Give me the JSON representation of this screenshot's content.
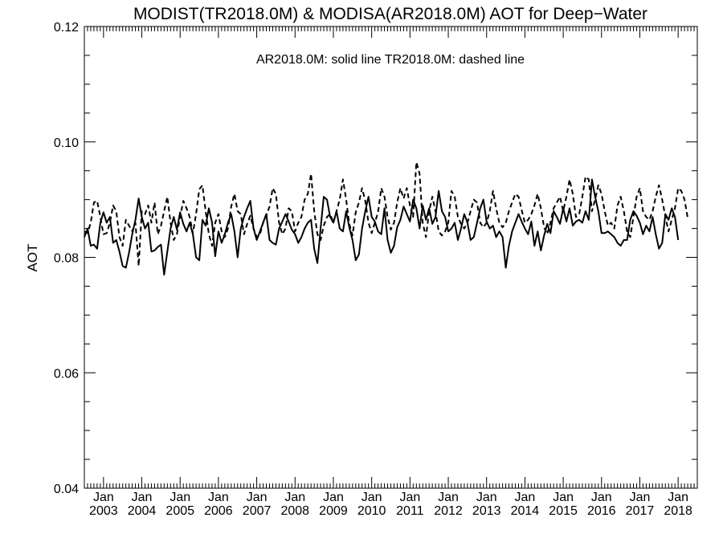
{
  "chart_data": {
    "type": "line",
    "title": "MODIST(TR2018.0M) & MODISA(AR2018.0M)  AOT for Deep−Water",
    "ylabel": "AOT",
    "xlabel": "",
    "legend_note": "AR2018.0M: solid line   TR2018.0M: dashed line",
    "ylim": [
      0.04,
      0.12
    ],
    "yticks": [
      "0.04",
      "0.06",
      "0.08",
      "0.10",
      "0.12"
    ],
    "xlim": [
      "2002-07",
      "2018-07"
    ],
    "xticks": [
      {
        "month": "Jan",
        "year": "2003",
        "date": "2003-01"
      },
      {
        "month": "Jan",
        "year": "2004",
        "date": "2004-01"
      },
      {
        "month": "Jan",
        "year": "2005",
        "date": "2005-01"
      },
      {
        "month": "Jan",
        "year": "2006",
        "date": "2006-01"
      },
      {
        "month": "Jan",
        "year": "2007",
        "date": "2007-01"
      },
      {
        "month": "Jan",
        "year": "2008",
        "date": "2008-01"
      },
      {
        "month": "Jan",
        "year": "2009",
        "date": "2009-01"
      },
      {
        "month": "Jan",
        "year": "2010",
        "date": "2010-01"
      },
      {
        "month": "Jan",
        "year": "2011",
        "date": "2011-01"
      },
      {
        "month": "Jan",
        "year": "2012",
        "date": "2012-01"
      },
      {
        "month": "Jan",
        "year": "2013",
        "date": "2013-01"
      },
      {
        "month": "Jan",
        "year": "2014",
        "date": "2014-01"
      },
      {
        "month": "Jan",
        "year": "2015",
        "date": "2015-01"
      },
      {
        "month": "Jan",
        "year": "2016",
        "date": "2016-01"
      },
      {
        "month": "Jan",
        "year": "2017",
        "date": "2017-01"
      },
      {
        "month": "Jan",
        "year": "2018",
        "date": "2018-01"
      }
    ],
    "grid": false,
    "series": [
      {
        "name": "AR2018.0M",
        "style": "solid",
        "color": "#000000",
        "start": "2002-07",
        "values": [
          0.0835,
          0.085,
          0.082,
          0.0822,
          0.0815,
          0.086,
          0.0878,
          0.086,
          0.087,
          0.0825,
          0.083,
          0.081,
          0.0785,
          0.0782,
          0.0808,
          0.084,
          0.0865,
          0.0902,
          0.087,
          0.085,
          0.086,
          0.081,
          0.0812,
          0.0818,
          0.0822,
          0.077,
          0.081,
          0.085,
          0.087,
          0.0848,
          0.0878,
          0.0858,
          0.0845,
          0.086,
          0.084,
          0.08,
          0.0795,
          0.0865,
          0.0855,
          0.0885,
          0.086,
          0.0802,
          0.0845,
          0.0825,
          0.084,
          0.086,
          0.0875,
          0.0845,
          0.08,
          0.085,
          0.087,
          0.0885,
          0.0898,
          0.085,
          0.083,
          0.0845,
          0.086,
          0.0875,
          0.083,
          0.0825,
          0.0822,
          0.085,
          0.0862,
          0.0875,
          0.0862,
          0.0848,
          0.084,
          0.0825,
          0.0835,
          0.085,
          0.086,
          0.0865,
          0.0815,
          0.079,
          0.085,
          0.0905,
          0.09,
          0.087,
          0.086,
          0.088,
          0.085,
          0.0845,
          0.088,
          0.0852,
          0.083,
          0.0795,
          0.0805,
          0.085,
          0.088,
          0.0905,
          0.087,
          0.0862,
          0.0845,
          0.084,
          0.0885,
          0.083,
          0.0808,
          0.082,
          0.0852,
          0.0865,
          0.0888,
          0.0875,
          0.0862,
          0.09,
          0.0885,
          0.085,
          0.089,
          0.0865,
          0.0885,
          0.0858,
          0.087,
          0.0915,
          0.088,
          0.087,
          0.0845,
          0.085,
          0.086,
          0.083,
          0.085,
          0.0875,
          0.086,
          0.083,
          0.0835,
          0.086,
          0.0885,
          0.09,
          0.0862,
          0.085,
          0.0855,
          0.0835,
          0.0845,
          0.0835,
          0.0782,
          0.082,
          0.0845,
          0.086,
          0.0875,
          0.0862,
          0.085,
          0.084,
          0.0862,
          0.082,
          0.0845,
          0.0812,
          0.0838,
          0.0858,
          0.0842,
          0.088,
          0.087,
          0.0858,
          0.0885,
          0.0862,
          0.0885,
          0.0855,
          0.0862,
          0.0865,
          0.086,
          0.088,
          0.0865,
          0.0935,
          0.0905,
          0.088,
          0.0842,
          0.0842,
          0.0845,
          0.084,
          0.0835,
          0.0825,
          0.082,
          0.083,
          0.083,
          0.0865,
          0.088,
          0.0872,
          0.086,
          0.084,
          0.0855,
          0.0845,
          0.087,
          0.084,
          0.0815,
          0.0825,
          0.0875,
          0.0865,
          0.0885,
          0.087,
          0.083
        ]
      },
      {
        "name": "TR2018.0M",
        "style": "dashed",
        "color": "#000000",
        "start": "2002-07",
        "values": [
          0.0845,
          0.0842,
          0.086,
          0.0895,
          0.0898,
          0.087,
          0.084,
          0.0842,
          0.086,
          0.089,
          0.088,
          0.0835,
          0.082,
          0.0865,
          0.0855,
          0.0845,
          0.086,
          0.0785,
          0.088,
          0.0875,
          0.089,
          0.086,
          0.0895,
          0.084,
          0.0855,
          0.088,
          0.0905,
          0.086,
          0.083,
          0.084,
          0.087,
          0.0898,
          0.0885,
          0.087,
          0.0842,
          0.0875,
          0.0918,
          0.0925,
          0.088,
          0.084,
          0.082,
          0.086,
          0.0875,
          0.0845,
          0.0835,
          0.085,
          0.0888,
          0.091,
          0.088,
          0.0875,
          0.084,
          0.0858,
          0.0872,
          0.085,
          0.0835,
          0.084,
          0.086,
          0.0872,
          0.0888,
          0.092,
          0.091,
          0.086,
          0.084,
          0.085,
          0.0885,
          0.088,
          0.0845,
          0.086,
          0.087,
          0.09,
          0.091,
          0.0945,
          0.088,
          0.084,
          0.083,
          0.0855,
          0.087,
          0.0875,
          0.086,
          0.088,
          0.09,
          0.0935,
          0.09,
          0.0858,
          0.0838,
          0.0878,
          0.0895,
          0.092,
          0.0898,
          0.086,
          0.0842,
          0.086,
          0.0878,
          0.092,
          0.0905,
          0.087,
          0.0848,
          0.086,
          0.0895,
          0.092,
          0.0902,
          0.092,
          0.089,
          0.087,
          0.0965,
          0.0945,
          0.086,
          0.0835,
          0.088,
          0.0905,
          0.088,
          0.0845,
          0.0838,
          0.0845,
          0.086,
          0.0915,
          0.0905,
          0.087,
          0.0858,
          0.085,
          0.086,
          0.088,
          0.09,
          0.0895,
          0.086,
          0.0852,
          0.086,
          0.088,
          0.0915,
          0.0885,
          0.086,
          0.0852,
          0.086,
          0.088,
          0.0895,
          0.091,
          0.0905,
          0.0882,
          0.086,
          0.0865,
          0.0875,
          0.089,
          0.091,
          0.0885,
          0.0852,
          0.084,
          0.086,
          0.0885,
          0.0895,
          0.0905,
          0.088,
          0.0905,
          0.0935,
          0.091,
          0.087,
          0.0875,
          0.0905,
          0.094,
          0.0935,
          0.088,
          0.09,
          0.0925,
          0.091,
          0.088,
          0.0855,
          0.086,
          0.085,
          0.089,
          0.0905,
          0.088,
          0.0845,
          0.0835,
          0.087,
          0.0905,
          0.092,
          0.088,
          0.087,
          0.0865,
          0.088,
          0.0905,
          0.0925,
          0.09,
          0.087,
          0.0845,
          0.0865,
          0.0885,
          0.092,
          0.0915,
          0.09,
          0.0868
        ]
      }
    ]
  }
}
